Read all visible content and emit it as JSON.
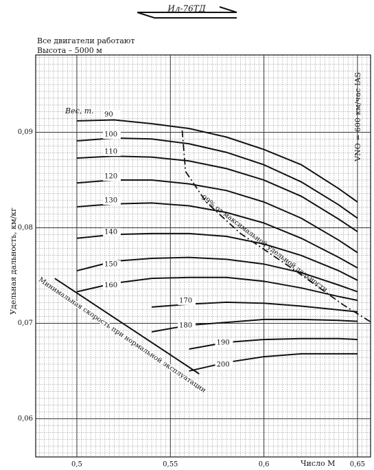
{
  "header": {
    "logo": "Ил-76ТД"
  },
  "chart_data": {
    "type": "line",
    "subtitle_lines": [
      "Все двигатели работают",
      "Высота – 5000 м"
    ],
    "ylabel": "Удельная дальность, км/кг",
    "xlabel": "Число М",
    "legend_title": "Вес, т.",
    "annotation_vno": "VNO = 600 км/час IAS",
    "x": [
      0.5,
      0.52,
      0.54,
      0.56,
      0.58,
      0.6,
      0.62,
      0.64,
      0.65
    ],
    "series": [
      {
        "name": "90",
        "color": "#111",
        "values": [
          0.0912,
          0.0913,
          0.0909,
          0.0904,
          0.0895,
          0.0882,
          0.0866,
          0.0841,
          0.0827
        ]
      },
      {
        "name": "100",
        "color": "#111",
        "values": [
          0.0891,
          0.0894,
          0.0893,
          0.0888,
          0.0879,
          0.0866,
          0.0848,
          0.0824,
          0.081
        ]
      },
      {
        "name": "110",
        "color": "#111",
        "values": [
          0.0873,
          0.0875,
          0.0874,
          0.087,
          0.0862,
          0.085,
          0.0833,
          0.0809,
          0.0796
        ]
      },
      {
        "name": "120",
        "color": "#111",
        "values": [
          0.0847,
          0.085,
          0.085,
          0.0846,
          0.0839,
          0.0827,
          0.081,
          0.0787,
          0.0774
        ]
      },
      {
        "name": "130",
        "color": "#111",
        "values": [
          0.0822,
          0.0825,
          0.0826,
          0.0823,
          0.0816,
          0.0805,
          0.0789,
          0.0769,
          0.0758
        ]
      },
      {
        "name": "140",
        "color": "#111",
        "values": [
          0.0789,
          0.0793,
          0.0794,
          0.0794,
          0.0791,
          0.0783,
          0.0771,
          0.0755,
          0.0745
        ]
      },
      {
        "name": "150",
        "color": "#111",
        "values": [
          0.0755,
          0.0765,
          0.0768,
          0.0769,
          0.0767,
          0.0762,
          0.0753,
          0.074,
          0.0733
        ]
      },
      {
        "name": "160",
        "color": "#111",
        "values": [
          0.0733,
          0.0742,
          0.0747,
          0.0748,
          0.0748,
          0.0744,
          0.0737,
          0.0728,
          0.0724
        ]
      },
      {
        "name": "170",
        "color": "#111",
        "values": [
          null,
          null,
          0.0717,
          0.072,
          0.0722,
          0.0721,
          0.0718,
          0.0714,
          0.0712
        ]
      },
      {
        "name": "180",
        "color": "#111",
        "values": [
          null,
          null,
          0.0691,
          0.0698,
          0.0701,
          0.0704,
          0.0704,
          0.0703,
          0.0702
        ]
      },
      {
        "name": "190",
        "color": "#111",
        "values": [
          null,
          null,
          null,
          0.0673,
          0.068,
          0.0683,
          0.0684,
          0.0684,
          0.0683
        ]
      },
      {
        "name": "200",
        "color": "#111",
        "values": [
          null,
          null,
          null,
          0.065,
          0.0659,
          0.0665,
          0.0668,
          0.0668,
          0.0668
        ]
      }
    ],
    "max_range_line": {
      "name": "99% от максимальной удельной дальности",
      "dashed": true,
      "x": [
        0.5563,
        0.5581,
        0.5691,
        0.5875,
        0.6169,
        0.6426,
        0.6574
      ],
      "y": [
        0.0902,
        0.0859,
        0.0827,
        0.0794,
        0.0755,
        0.0719,
        0.0701
      ]
    },
    "min_speed_line": {
      "name": "Минимальная скорость при нормальной эксплуатации",
      "x": [
        0.4882,
        0.5654
      ],
      "y": [
        0.0747,
        0.0647
      ]
    },
    "xlim": [
      0.478,
      0.657
    ],
    "ylim": [
      0.056,
      0.0981
    ],
    "xticks": [
      {
        "value": 0.5,
        "label": "0,5"
      },
      {
        "value": 0.55,
        "label": "0,55"
      },
      {
        "value": 0.6,
        "label": "0,6"
      },
      {
        "value": 0.65,
        "label": "0,65"
      }
    ],
    "yticks": [
      {
        "value": 0.06,
        "label": "0,06"
      },
      {
        "value": 0.07,
        "label": "0,07"
      },
      {
        "value": 0.08,
        "label": "0,08"
      },
      {
        "value": 0.09,
        "label": "0,09"
      }
    ],
    "grid": true
  }
}
